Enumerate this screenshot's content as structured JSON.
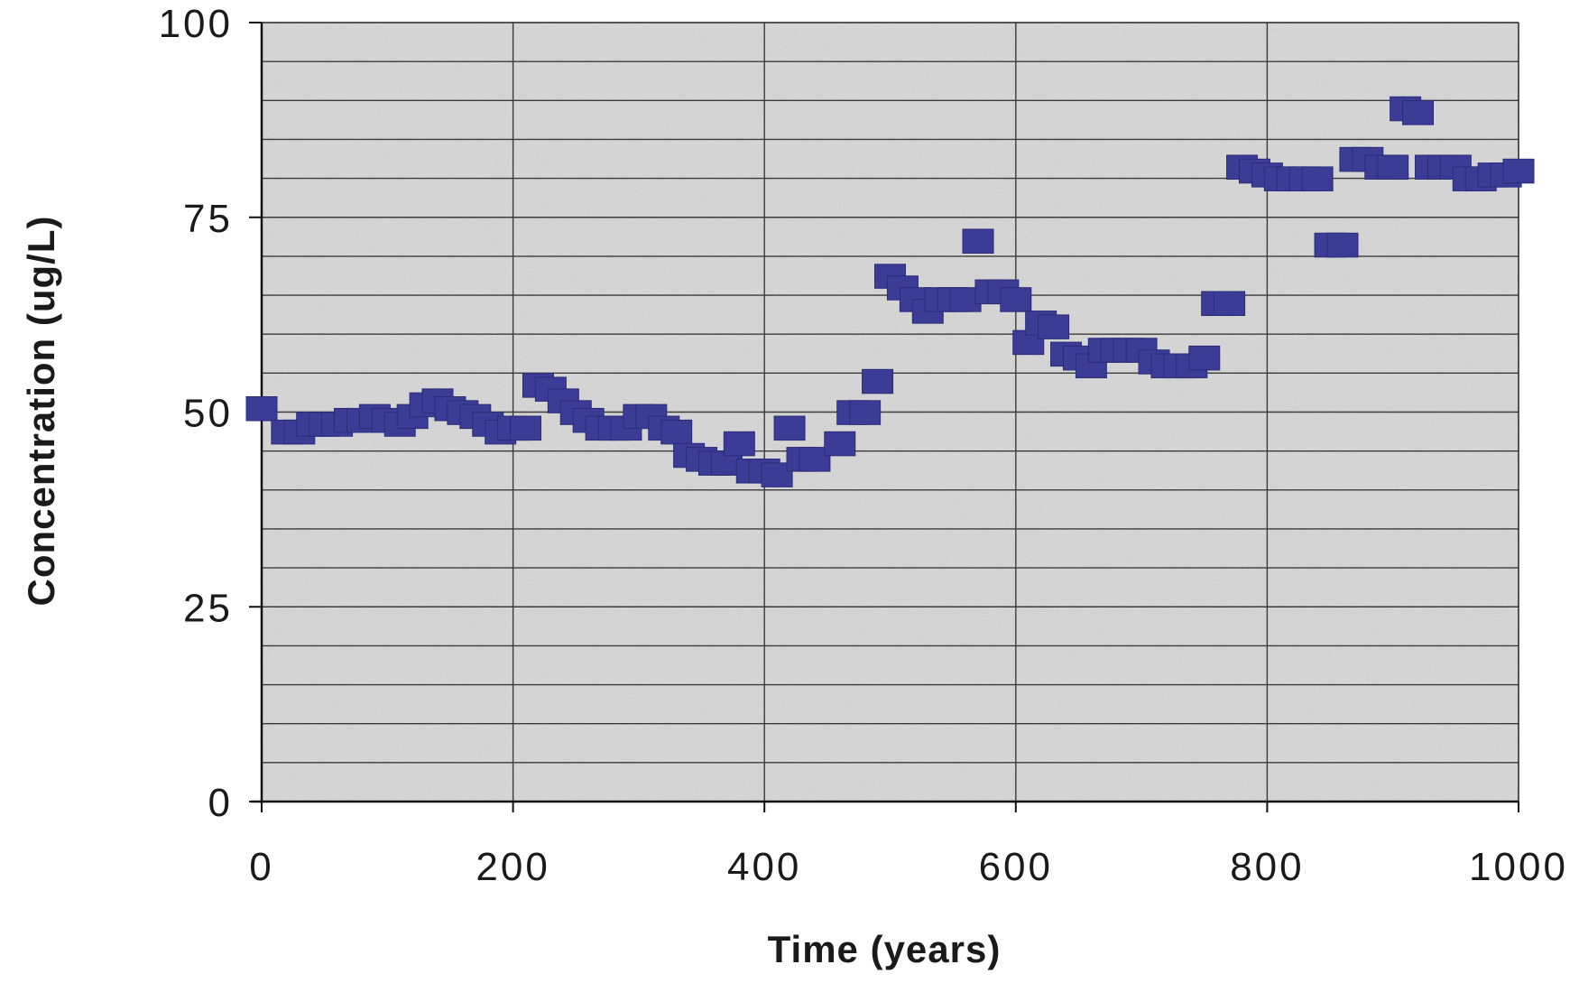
{
  "chart_data": {
    "type": "scatter",
    "title": "",
    "xlabel": "Time (years)",
    "ylabel": "Concentration (ug/L)",
    "xlim": [
      0,
      1000
    ],
    "ylim": [
      0,
      100
    ],
    "xticks": [
      0,
      200,
      400,
      600,
      800,
      1000
    ],
    "xtick_labels": [
      "0",
      "200",
      "400",
      "600",
      "800",
      "1000"
    ],
    "yticks": [
      0,
      25,
      50,
      75,
      100
    ],
    "ytick_labels": [
      "0",
      "25",
      "50",
      "75",
      "100"
    ],
    "minor_y_step": 5,
    "grid": true,
    "legend": "none",
    "colors": {
      "marker": "#3b3c96",
      "plot_background": "#d9d9d9",
      "grid": "#3a3a3a"
    },
    "series": [
      {
        "marker": "square",
        "x": [
          0,
          20,
          30,
          40,
          50,
          60,
          70,
          80,
          90,
          100,
          110,
          120,
          130,
          140,
          150,
          160,
          170,
          180,
          190,
          200,
          210,
          220,
          230,
          240,
          250,
          260,
          270,
          280,
          290,
          300,
          310,
          320,
          330,
          340,
          350,
          360,
          370,
          380,
          390,
          400,
          410,
          420,
          430,
          440,
          460,
          470,
          480,
          490,
          500,
          510,
          520,
          530,
          540,
          550,
          560,
          570,
          580,
          590,
          600,
          610,
          620,
          630,
          640,
          650,
          660,
          670,
          680,
          690,
          700,
          710,
          720,
          730,
          740,
          750,
          760,
          770,
          780,
          790,
          800,
          810,
          820,
          830,
          840,
          850,
          860,
          870,
          880,
          890,
          900,
          910,
          920,
          930,
          940,
          950,
          960,
          970,
          980,
          990,
          1000
        ],
        "y": [
          50,
          47,
          47,
          48,
          48,
          48,
          48.5,
          48.5,
          49,
          48.5,
          48,
          49,
          50.5,
          51,
          50,
          49.5,
          49,
          48,
          47,
          47.5,
          47.5,
          53,
          52.5,
          51,
          49.5,
          48.5,
          47.5,
          47.5,
          47.5,
          49,
          49,
          47.5,
          47,
          44,
          43.5,
          43,
          43,
          45.5,
          42,
          42,
          41.5,
          47.5,
          43.5,
          43.5,
          45.5,
          49.5,
          49.5,
          53.5,
          67,
          65.5,
          64,
          62.5,
          64,
          64,
          64,
          71.5,
          65,
          65,
          64,
          58.5,
          61,
          60.5,
          57,
          56.5,
          55.5,
          57.5,
          57.5,
          57.5,
          57.5,
          56,
          55.5,
          55.5,
          55.5,
          56.5,
          63.5,
          63.5,
          81,
          80.5,
          80,
          79.5,
          79.5,
          79.5,
          79.5,
          71,
          71,
          82,
          82,
          81,
          81,
          88.5,
          88,
          81,
          81,
          81,
          79.5,
          79.5,
          80,
          80,
          80.5
        ]
      }
    ]
  }
}
